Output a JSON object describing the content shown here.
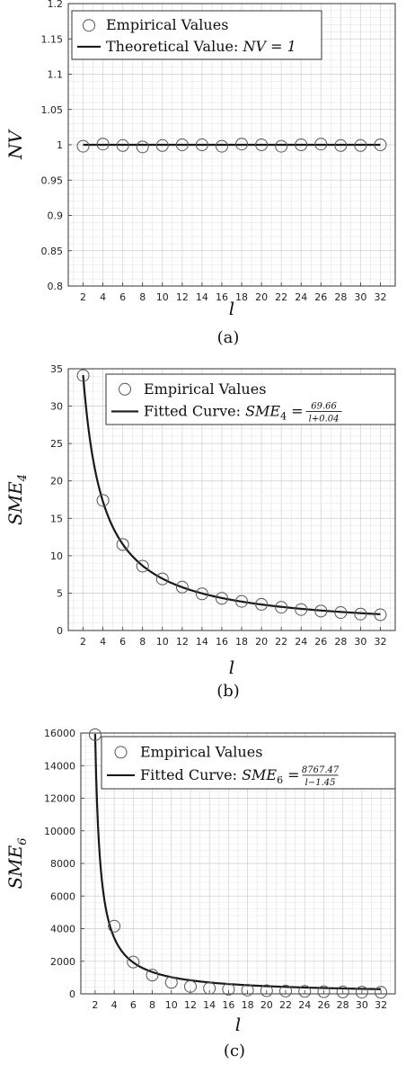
{
  "figure": {
    "captions": [
      "(a)",
      "(b)",
      "(c)"
    ]
  },
  "chart_data": [
    {
      "type": "scatter",
      "title": "",
      "xlabel": "l",
      "ylabel": "NV",
      "ylabel_sub": "",
      "xlim": [
        0.5,
        33.5
      ],
      "ylim": [
        0.8,
        1.2
      ],
      "x_ticks": [
        "2",
        "4",
        "6",
        "8",
        "10",
        "12",
        "14",
        "16",
        "18",
        "20",
        "22",
        "24",
        "26",
        "28",
        "30",
        "32"
      ],
      "y_ticks": [
        "0.8",
        "0.85",
        "0.9",
        "0.95",
        "1",
        "1.05",
        "1.1",
        "1.15",
        "1.2"
      ],
      "grid": true,
      "legend_position": "top-left",
      "series": [
        {
          "name": "Empirical Values",
          "kind": "markers",
          "x": [
            2,
            4,
            6,
            8,
            10,
            12,
            14,
            16,
            18,
            20,
            22,
            24,
            26,
            28,
            30,
            32
          ],
          "y": [
            0.998,
            1.001,
            0.999,
            0.997,
            0.999,
            1.0,
            1.0,
            0.998,
            1.001,
            1.0,
            0.998,
            1.0,
            1.001,
            0.999,
            0.999,
            1.0
          ]
        },
        {
          "name": "Theoretical Value: NV = 1",
          "name_prefix": "Theoretical Value: ",
          "name_math": "NV = 1",
          "kind": "line",
          "x": [
            2,
            32
          ],
          "y": [
            1,
            1
          ]
        }
      ]
    },
    {
      "type": "scatter",
      "title": "",
      "xlabel": "l",
      "ylabel": "SME",
      "ylabel_sub": "4",
      "xlim": [
        0.5,
        33.5
      ],
      "ylim": [
        0,
        35
      ],
      "x_ticks": [
        "2",
        "4",
        "6",
        "8",
        "10",
        "12",
        "14",
        "16",
        "18",
        "20",
        "22",
        "24",
        "26",
        "28",
        "30",
        "32"
      ],
      "y_ticks": [
        "0",
        "5",
        "10",
        "15",
        "20",
        "25",
        "30",
        "35"
      ],
      "grid": true,
      "legend_position": "top-right",
      "series": [
        {
          "name": "Empirical Values",
          "kind": "markers",
          "x": [
            2,
            4,
            6,
            8,
            10,
            12,
            14,
            16,
            18,
            20,
            22,
            24,
            26,
            28,
            30,
            32
          ],
          "y": [
            34.1,
            17.4,
            11.5,
            8.6,
            6.9,
            5.8,
            4.9,
            4.3,
            3.9,
            3.5,
            3.1,
            2.8,
            2.6,
            2.4,
            2.2,
            2.1
          ]
        },
        {
          "name": "Fitted Curve: SME4 = 69.66 / (l+0.04)",
          "name_prefix": "Fitted Curve: ",
          "name_math": "SME",
          "name_sub": "4",
          "frac_num": "69.66",
          "frac_den": "l+0.04",
          "kind": "curve",
          "fit": {
            "a": 69.66,
            "b": 0.04,
            "x_start": 2,
            "x_end": 32
          }
        }
      ]
    },
    {
      "type": "scatter",
      "title": "",
      "xlabel": "l",
      "ylabel": "SME",
      "ylabel_sub": "6",
      "xlim": [
        0.5,
        33.5
      ],
      "ylim": [
        0,
        16000
      ],
      "x_ticks": [
        "2",
        "4",
        "6",
        "8",
        "10",
        "12",
        "14",
        "16",
        "18",
        "20",
        "22",
        "24",
        "26",
        "28",
        "30",
        "32"
      ],
      "y_ticks": [
        "0",
        "2000",
        "4000",
        "6000",
        "8000",
        "10000",
        "12000",
        "14000",
        "16000"
      ],
      "grid": true,
      "legend_position": "top-right",
      "series": [
        {
          "name": "Empirical Values",
          "kind": "markers",
          "x": [
            2,
            4,
            6,
            8,
            10,
            12,
            14,
            16,
            18,
            20,
            22,
            24,
            26,
            28,
            30,
            32
          ],
          "y": [
            15900,
            4150,
            1950,
            1150,
            700,
            450,
            340,
            280,
            230,
            190,
            170,
            150,
            130,
            115,
            105,
            95
          ]
        },
        {
          "name": "Fitted Curve: SME6 = 8767.47 / (l-1.45)",
          "name_prefix": "Fitted Curve: ",
          "name_math": "SME",
          "name_sub": "6",
          "frac_num": "8767.47",
          "frac_den": "l−1.45",
          "kind": "curve",
          "fit": {
            "a": 8767.47,
            "b": -1.45,
            "x_start": 2.0,
            "x_end": 32
          }
        }
      ]
    }
  ]
}
